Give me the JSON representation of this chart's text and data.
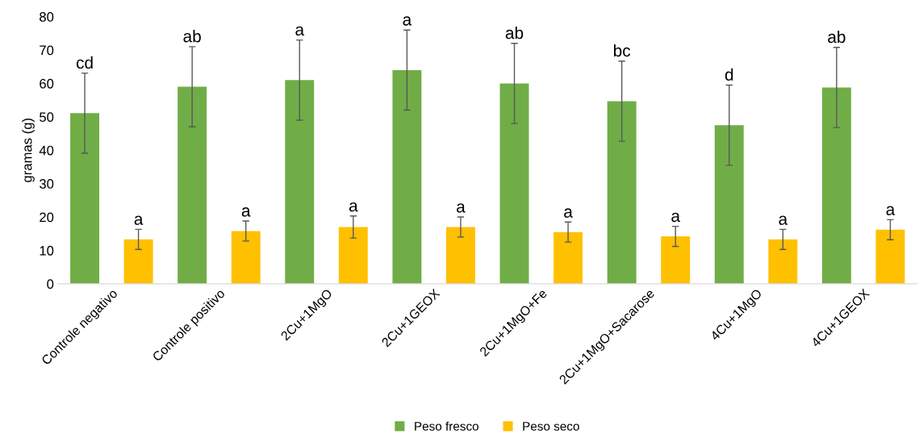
{
  "chart_data": {
    "type": "bar",
    "ylabel": "gramas (g)",
    "categories": [
      "Controle negativo",
      "Controle positivo",
      "2Cu+1MgO",
      "2Cu+1GEOX",
      "2Cu+1MgO+Fe",
      "2Cu+1MgO+Sacarose",
      "4Cu+1MgO",
      "4Cu+1GEOX"
    ],
    "series": [
      {
        "name": "Peso fresco",
        "color": "#70ad47",
        "values": [
          51.1,
          59,
          61,
          64,
          60,
          54.7,
          47.5,
          58.8
        ],
        "errors": [
          12,
          12,
          12,
          12,
          12,
          12,
          12,
          12
        ],
        "value_labels": [
          "cd",
          "ab",
          "a",
          "a",
          "ab",
          "bc",
          "d",
          "ab"
        ]
      },
      {
        "name": "Peso seco",
        "color": "#ffc000",
        "values": [
          13.3,
          15.8,
          17,
          17,
          15.5,
          14.2,
          13.3,
          16.2
        ],
        "errors": [
          3,
          3,
          3.3,
          3,
          3,
          3,
          3,
          3
        ],
        "value_labels": [
          "a",
          "a",
          "a",
          "a",
          "a",
          "a",
          "a",
          "a"
        ]
      }
    ],
    "ylim": [
      0,
      80
    ],
    "yticks": [
      0,
      10,
      20,
      30,
      40,
      50,
      60,
      70,
      80
    ],
    "grid": false,
    "legend": "bottom"
  }
}
